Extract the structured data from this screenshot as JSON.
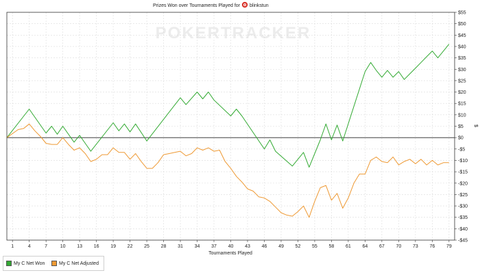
{
  "chart_data": {
    "type": "line",
    "title": "Prizes Won over Tournaments Played for",
    "player_name": "blinkstun",
    "watermark": "POKERTRACKER",
    "xlabel": "Tournaments Played",
    "ylabel": "$",
    "xlim": [
      0,
      80
    ],
    "ylim": [
      -45,
      55
    ],
    "x_ticks": [
      1,
      4,
      7,
      10,
      13,
      16,
      19,
      22,
      25,
      28,
      31,
      34,
      37,
      40,
      43,
      46,
      49,
      52,
      55,
      58,
      61,
      64,
      67,
      70,
      73,
      76,
      79
    ],
    "y_ticks": [
      55,
      50,
      45,
      40,
      35,
      30,
      25,
      20,
      15,
      10,
      5,
      0,
      -5,
      -10,
      -15,
      -20,
      -25,
      -30,
      -35,
      -40,
      -45
    ],
    "y_tick_labels": [
      "$55",
      "$50",
      "$45",
      "$40",
      "$35",
      "$30",
      "$25",
      "$20",
      "$15",
      "$10",
      "$5",
      "$0",
      "-$5",
      "-$10",
      "-$15",
      "-$20",
      "-$25",
      "-$30",
      "-$35",
      "-$40",
      "-$45"
    ],
    "grid": true,
    "legend_position": "bottom-left",
    "series": [
      {
        "name": "My C Net Won",
        "color": "#33aa33",
        "x": [
          0,
          4,
          7,
          8,
          9,
          10,
          12,
          13,
          15,
          19,
          20,
          21,
          22,
          23,
          25,
          31,
          32,
          34,
          35,
          36,
          37,
          40,
          41,
          42,
          46,
          47,
          48,
          51,
          53,
          54,
          56,
          57,
          58,
          59,
          60,
          64,
          65,
          66,
          67,
          68,
          69,
          70,
          71,
          72,
          73,
          74,
          75,
          76,
          77,
          78,
          79
        ],
        "y": [
          0,
          12.5,
          2,
          5,
          1.5,
          5,
          -2,
          1,
          -6,
          6.5,
          3,
          6,
          2.5,
          6,
          -1.5,
          17.5,
          14.5,
          20,
          17,
          20,
          16.5,
          9.5,
          12.5,
          9.5,
          -5,
          -1,
          -6,
          -12.5,
          -6.5,
          -13,
          -1,
          6,
          -1,
          5.5,
          -1.5,
          29,
          33,
          29.5,
          26.5,
          29.5,
          26.5,
          29,
          25.5,
          28,
          30.5,
          33,
          35.5,
          38,
          35,
          38,
          41
        ]
      },
      {
        "name": "My C Net Adjusted",
        "color": "#ee9933",
        "x": [
          0,
          2,
          3,
          4,
          5,
          6,
          7,
          8,
          9,
          10,
          11,
          12,
          13,
          14,
          15,
          16,
          17,
          18,
          19,
          20,
          21,
          22,
          23,
          24,
          25,
          26,
          27,
          28,
          29,
          30,
          31,
          32,
          33,
          34,
          35,
          36,
          37,
          38,
          39,
          40,
          41,
          42,
          43,
          44,
          45,
          46,
          47,
          48,
          49,
          50,
          51,
          52,
          53,
          54,
          55,
          56,
          57,
          58,
          59,
          60,
          61,
          62,
          63,
          64,
          65,
          66,
          67,
          68,
          69,
          70,
          71,
          72,
          73,
          74,
          75,
          76,
          77,
          78,
          79
        ],
        "y": [
          0,
          3.5,
          4,
          6,
          3,
          0.5,
          -2.5,
          -3,
          -3,
          0,
          -3,
          -5.5,
          -4.5,
          -7,
          -10.5,
          -9.5,
          -7.5,
          -7.5,
          -4.5,
          -6.5,
          -6.5,
          -9.5,
          -7,
          -10.5,
          -13.5,
          -13.5,
          -11,
          -7.5,
          -7,
          -6.5,
          -6,
          -8,
          -7,
          -4.5,
          -5.5,
          -4.5,
          -6,
          -5.5,
          -10.5,
          -13.5,
          -17,
          -19.5,
          -22.5,
          -23.5,
          -26,
          -26.5,
          -28,
          -30.5,
          -33,
          -34,
          -34.5,
          -32.5,
          -30,
          -35,
          -28,
          -22,
          -21,
          -27.5,
          -24.5,
          -31,
          -26.5,
          -20,
          -16,
          -16,
          -10,
          -8.5,
          -10.5,
          -11,
          -8.5,
          -12,
          -10.5,
          -9.5,
          -11.5,
          -9.5,
          -12,
          -10,
          -12,
          -11,
          -11
        ]
      }
    ]
  }
}
